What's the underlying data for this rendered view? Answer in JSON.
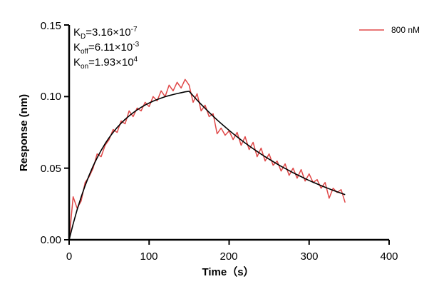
{
  "chart_data": {
    "type": "line",
    "title": "",
    "xlabel": "Time（s）",
    "ylabel": "Response (nm)",
    "xlim": [
      0,
      400
    ],
    "ylim": [
      0,
      0.15
    ],
    "xticks": [
      "0",
      "100",
      "200",
      "300",
      "400"
    ],
    "yticks": [
      "0.00",
      "0.05",
      "0.10",
      "0.15"
    ],
    "grid": false,
    "legend_position": "top-right",
    "annotations": {
      "kd": {
        "label": "K",
        "sub": "D",
        "value": "=3.16×10",
        "exp": "-7"
      },
      "koff": {
        "label": "K",
        "sub": "off",
        "value": "=6.11×10",
        "exp": "-3"
      },
      "kon": {
        "label": "K",
        "sub": "on",
        "value": "=1.93×10",
        "exp": "4"
      }
    },
    "x": [
      0,
      5,
      10,
      15,
      20,
      25,
      30,
      35,
      40,
      45,
      50,
      55,
      60,
      65,
      70,
      75,
      80,
      85,
      90,
      95,
      100,
      105,
      110,
      115,
      120,
      125,
      130,
      135,
      140,
      145,
      150,
      155,
      160,
      165,
      170,
      175,
      180,
      185,
      190,
      195,
      200,
      205,
      210,
      215,
      220,
      225,
      230,
      235,
      240,
      245,
      250,
      255,
      260,
      265,
      270,
      275,
      280,
      285,
      290,
      295,
      300,
      305,
      310,
      315,
      320,
      325,
      330,
      335,
      340,
      345
    ],
    "series": [
      {
        "name": "800 nM",
        "color": "#e04848",
        "values": [
          0.0,
          0.03,
          0.022,
          0.027,
          0.04,
          0.044,
          0.05,
          0.06,
          0.058,
          0.066,
          0.07,
          0.077,
          0.075,
          0.083,
          0.081,
          0.09,
          0.086,
          0.092,
          0.09,
          0.096,
          0.093,
          0.1,
          0.097,
          0.104,
          0.1,
          0.108,
          0.104,
          0.11,
          0.106,
          0.112,
          0.108,
          0.096,
          0.102,
          0.09,
          0.094,
          0.086,
          0.088,
          0.074,
          0.078,
          0.073,
          0.076,
          0.07,
          0.075,
          0.066,
          0.072,
          0.063,
          0.068,
          0.058,
          0.064,
          0.055,
          0.06,
          0.052,
          0.055,
          0.048,
          0.053,
          0.045,
          0.05,
          0.043,
          0.049,
          0.041,
          0.046,
          0.04,
          0.042,
          0.036,
          0.04,
          0.029,
          0.036,
          0.033,
          0.035,
          0.026
        ]
      },
      {
        "color": "#000000",
        "values": [
          0.0,
          0.011,
          0.021,
          0.0298,
          0.0378,
          0.045,
          0.0515,
          0.0572,
          0.0624,
          0.0671,
          0.0713,
          0.075,
          0.0784,
          0.0814,
          0.0841,
          0.0865,
          0.0887,
          0.0907,
          0.0925,
          0.0941,
          0.0955,
          0.0968,
          0.0979,
          0.0989,
          0.0999,
          0.1007,
          0.1014,
          0.1021,
          0.1027,
          0.1033,
          0.1037,
          0.1006,
          0.0975,
          0.0946,
          0.0918,
          0.089,
          0.0863,
          0.0837,
          0.0812,
          0.0788,
          0.0764,
          0.0741,
          0.0719,
          0.0697,
          0.0676,
          0.0656,
          0.0636,
          0.0617,
          0.0598,
          0.058,
          0.0563,
          0.0546,
          0.0529,
          0.0513,
          0.0498,
          0.0483,
          0.0468,
          0.0454,
          0.0441,
          0.0427,
          0.0414,
          0.0402,
          0.039,
          0.0378,
          0.0367,
          0.0356,
          0.0345,
          0.0335,
          0.0325,
          0.0315
        ]
      }
    ]
  }
}
